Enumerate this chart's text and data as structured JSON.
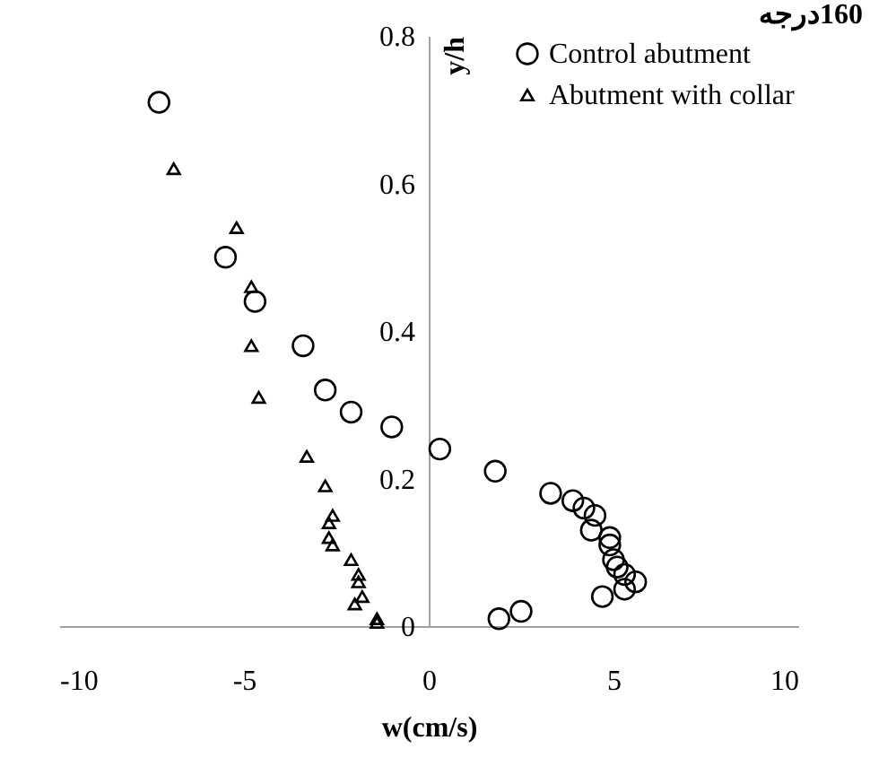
{
  "chart_data": {
    "type": "scatter",
    "title": "160درجه",
    "xlabel": "w(cm/s)",
    "ylabel": "y/h",
    "xlim": [
      -10,
      10
    ],
    "xticks": [
      -10,
      -5,
      0,
      5,
      10
    ],
    "ylim": [
      0,
      0.8
    ],
    "yticks": [
      {
        "value": 0,
        "label": "0"
      },
      0.2,
      0.4,
      0.6,
      0.8
    ],
    "grid": false,
    "legend": "top right",
    "series": [
      {
        "name": "Control abutment",
        "color": "#000000",
        "marker": "circle",
        "x": [
          -7.3,
          -5.5,
          -4.7,
          -3.4,
          -2.8,
          -2.1,
          -1.0,
          0.3,
          1.8,
          3.3,
          3.9,
          4.2,
          4.5,
          4.4,
          4.9,
          4.9,
          5.0,
          5.1,
          5.3,
          5.6,
          5.3,
          4.7,
          2.5,
          1.9
        ],
        "values": [
          0.71,
          0.5,
          0.44,
          0.38,
          0.32,
          0.29,
          0.27,
          0.24,
          0.21,
          0.18,
          0.17,
          0.16,
          0.15,
          0.13,
          0.12,
          0.11,
          0.09,
          0.08,
          0.07,
          0.06,
          0.05,
          0.04,
          0.02,
          0.01
        ]
      },
      {
        "name": "Abutment with collar",
        "color": "#000000",
        "marker": "triangle",
        "x": [
          -6.9,
          -5.2,
          -4.8,
          -4.8,
          -4.6,
          -3.3,
          -2.8,
          -2.6,
          -2.7,
          -2.7,
          -2.6,
          -2.1,
          -1.9,
          -1.9,
          -1.8,
          -2.0,
          -1.4,
          -1.4
        ],
        "values": [
          0.62,
          0.54,
          0.46,
          0.38,
          0.31,
          0.23,
          0.19,
          0.15,
          0.14,
          0.12,
          0.11,
          0.09,
          0.07,
          0.06,
          0.04,
          0.03,
          0.01,
          0.005
        ]
      }
    ]
  }
}
